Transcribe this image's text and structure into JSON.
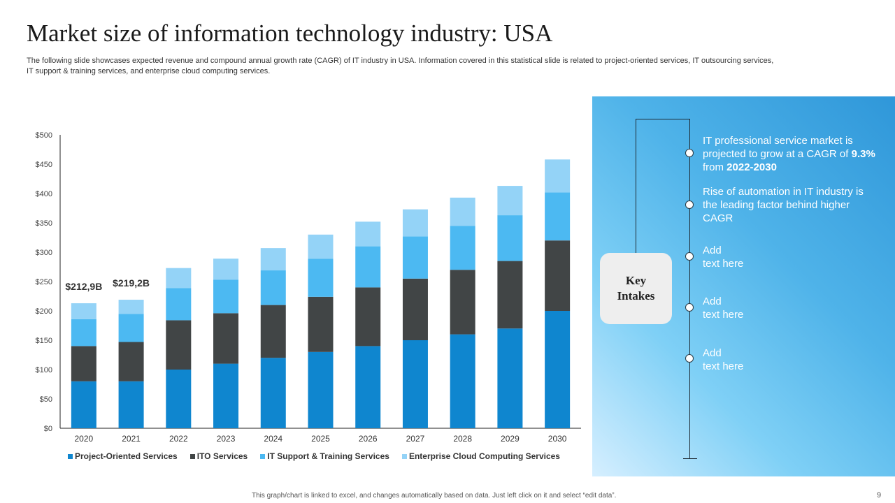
{
  "title": "Market size of information technology industry: USA",
  "subtitle": "The following slide showcases expected revenue and compound annual growth rate (CAGR) of IT industry in USA. Information covered in this statistical slide is related to project-oriented services, IT outsourcing services, IT support & training services, and enterprise cloud computing services.",
  "chart_data": {
    "type": "bar",
    "stacked": true,
    "categories": [
      "2020",
      "2021",
      "2022",
      "2023",
      "2024",
      "2025",
      "2026",
      "2027",
      "2028",
      "2029",
      "2030"
    ],
    "series": [
      {
        "name": "Project-Oriented Services",
        "color": "#0f86cf",
        "values": [
          80,
          80,
          100,
          110,
          120,
          130,
          140,
          150,
          160,
          170,
          200
        ]
      },
      {
        "name": "ITO Services",
        "color": "#414546",
        "values": [
          60,
          67,
          84,
          86,
          90,
          94,
          100,
          105,
          110,
          115,
          120
        ]
      },
      {
        "name": "IT Support & Training Services",
        "color": "#4cb9f2",
        "values": [
          46,
          48,
          55,
          57,
          59,
          65,
          70,
          72,
          75,
          78,
          82
        ]
      },
      {
        "name": "Enterprise Cloud Computing Services",
        "color": "#94d3f7",
        "values": [
          27,
          24,
          34,
          36,
          38,
          41,
          42,
          46,
          48,
          50,
          56
        ]
      }
    ],
    "ylim": [
      0,
      500
    ],
    "yticks": [
      "$0",
      "$50",
      "$100",
      "$150",
      "$200",
      "$250",
      "$300",
      "$350",
      "$400",
      "$450",
      "$500"
    ],
    "annotations": [
      {
        "category": "2020",
        "text": "$212,9B"
      },
      {
        "category": "2021",
        "text": "$219,2B"
      }
    ],
    "legend_position": "bottom"
  },
  "panel": {
    "key_label_line1": "Key",
    "key_label_line2": "Intakes",
    "point1_pre": "IT professional service market is projected to grow at a CAGR of ",
    "point1_cagr": "9.3%",
    "point1_mid": " from ",
    "point1_years": "2022-2030",
    "point2": "Rise of automation in IT industry is the leading factor behind higher CAGR",
    "point3_line1": "Add",
    "point3_line2": "text here",
    "point4_line1": "Add",
    "point4_line2": "text here",
    "point5_line1": "Add",
    "point5_line2": "text here"
  },
  "footer": "This graph/chart is linked to excel, and changes automatically based on data. Just left click on it and select “edit data”.",
  "page_number": "9"
}
